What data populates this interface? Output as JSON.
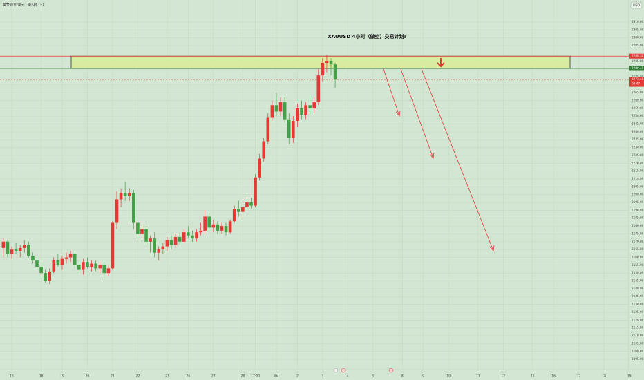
{
  "chart_data": {
    "type": "candlestick",
    "title": "XAUUSD  4小时（做空）交易计划!",
    "symbol_info": "黄金现货/美元 · 4小时 · FX",
    "currency": "USD",
    "up_color": "#e53935",
    "down_color": "#43a047",
    "grid": true,
    "ylim": [
      2088.4,
      2324.1
    ],
    "xlim": [
      -0.8,
      148.9
    ],
    "yticks": [
      {
        "value": 2095,
        "label": "2095.00"
      },
      {
        "value": 2100,
        "label": "2100.00"
      },
      {
        "value": 2105,
        "label": "2105.00"
      },
      {
        "value": 2110,
        "label": "2110.00"
      },
      {
        "value": 2115,
        "label": "2115.00"
      },
      {
        "value": 2120,
        "label": "2120.00"
      },
      {
        "value": 2125,
        "label": "2125.00"
      },
      {
        "value": 2130,
        "label": "2130.00"
      },
      {
        "value": 2135,
        "label": "2135.00"
      },
      {
        "value": 2140,
        "label": "2140.00"
      },
      {
        "value": 2145,
        "label": "2145.00"
      },
      {
        "value": 2150,
        "label": "2150.00"
      },
      {
        "value": 2155,
        "label": "2155.00"
      },
      {
        "value": 2160,
        "label": "2160.00"
      },
      {
        "value": 2165,
        "label": "2165.00"
      },
      {
        "value": 2170,
        "label": "2170.00"
      },
      {
        "value": 2175,
        "label": "2175.00"
      },
      {
        "value": 2180,
        "label": "2180.00"
      },
      {
        "value": 2185,
        "label": "2185.00"
      },
      {
        "value": 2190,
        "label": "2190.00"
      },
      {
        "value": 2195,
        "label": "2195.00"
      },
      {
        "value": 2200,
        "label": "2200.00"
      },
      {
        "value": 2205,
        "label": "2205.00"
      },
      {
        "value": 2210,
        "label": "2210.00"
      },
      {
        "value": 2215,
        "label": "2215.00"
      },
      {
        "value": 2220,
        "label": "2220.00"
      },
      {
        "value": 2225,
        "label": "2225.00"
      },
      {
        "value": 2230,
        "label": "2230.00"
      },
      {
        "value": 2235,
        "label": "2235.00"
      },
      {
        "value": 2240,
        "label": "2240.00"
      },
      {
        "value": 2245,
        "label": "2245.00"
      },
      {
        "value": 2250,
        "label": "2250.00"
      },
      {
        "value": 2255,
        "label": "2255.00"
      },
      {
        "value": 2260,
        "label": "2260.00"
      },
      {
        "value": 2265,
        "label": "2265.00"
      },
      {
        "value": 2270,
        "label": "2270.00"
      },
      {
        "value": 2275,
        "label": "2275.00"
      },
      {
        "value": 2285,
        "label": "2285.00"
      },
      {
        "value": 2295,
        "label": "2295.00"
      },
      {
        "value": 2300,
        "label": "2300.00"
      },
      {
        "value": 2305,
        "label": "2305.00"
      },
      {
        "value": 2310,
        "label": "2310.00"
      }
    ],
    "xticks": [
      {
        "value": 2,
        "label": "15"
      },
      {
        "value": 9,
        "label": "18"
      },
      {
        "value": 14,
        "label": "19"
      },
      {
        "value": 20,
        "label": "20"
      },
      {
        "value": 26,
        "label": "21"
      },
      {
        "value": 32,
        "label": "22"
      },
      {
        "value": 39,
        "label": "23"
      },
      {
        "value": 44,
        "label": "26"
      },
      {
        "value": 50,
        "label": "27"
      },
      {
        "value": 57,
        "label": "28"
      },
      {
        "value": 60,
        "label": "17:00"
      },
      {
        "value": 65,
        "label": "4月"
      },
      {
        "value": 70,
        "label": "2"
      },
      {
        "value": 76,
        "label": "3"
      },
      {
        "value": 82,
        "label": "4"
      },
      {
        "value": 88,
        "label": "5"
      },
      {
        "value": 95,
        "label": "8"
      },
      {
        "value": 100,
        "label": "9"
      },
      {
        "value": 106,
        "label": "10"
      },
      {
        "value": 113,
        "label": "11"
      },
      {
        "value": 119,
        "label": "12"
      },
      {
        "value": 126,
        "label": "15"
      },
      {
        "value": 131,
        "label": "16"
      },
      {
        "value": 137,
        "label": "17"
      },
      {
        "value": 143,
        "label": "18"
      },
      {
        "value": 149,
        "label": "19"
      }
    ],
    "levels": [
      {
        "value": 2288.32,
        "label": "2288.32",
        "color": "#e53935"
      },
      {
        "value": 2280.49,
        "label": "2280.49",
        "color": "#2e7d32"
      },
      {
        "value": 2273.4,
        "label": "2273.40",
        "color": "#e53935",
        "countdown": "00:47"
      }
    ],
    "ohlc": [
      [
        2166,
        2172,
        2160,
        2170
      ],
      [
        2170,
        2171,
        2160,
        2162
      ],
      [
        2162,
        2167,
        2159,
        2165
      ],
      [
        2165,
        2169,
        2162,
        2164
      ],
      [
        2164,
        2168,
        2160,
        2166
      ],
      [
        2166,
        2171,
        2163,
        2168
      ],
      [
        2168,
        2170,
        2160,
        2161
      ],
      [
        2161,
        2163,
        2156,
        2158
      ],
      [
        2158,
        2160,
        2152,
        2154
      ],
      [
        2154,
        2157,
        2146,
        2150
      ],
      [
        2150,
        2152,
        2144,
        2145
      ],
      [
        2145,
        2153,
        2143,
        2151
      ],
      [
        2151,
        2160,
        2150,
        2158
      ],
      [
        2158,
        2162,
        2154,
        2155
      ],
      [
        2155,
        2161,
        2152,
        2159
      ],
      [
        2159,
        2163,
        2156,
        2160
      ],
      [
        2160,
        2164,
        2157,
        2162
      ],
      [
        2162,
        2163,
        2153,
        2155
      ],
      [
        2155,
        2158,
        2150,
        2152
      ],
      [
        2152,
        2159,
        2149,
        2157
      ],
      [
        2157,
        2160,
        2153,
        2154
      ],
      [
        2154,
        2158,
        2151,
        2156
      ],
      [
        2156,
        2158,
        2151,
        2153
      ],
      [
        2153,
        2157,
        2150,
        2155
      ],
      [
        2155,
        2157,
        2147,
        2150
      ],
      [
        2150,
        2155,
        2148,
        2153
      ],
      [
        2153,
        2183,
        2152,
        2182
      ],
      [
        2182,
        2202,
        2178,
        2197
      ],
      [
        2197,
        2204,
        2192,
        2201
      ],
      [
        2201,
        2208,
        2196,
        2199
      ],
      [
        2199,
        2204,
        2196,
        2201
      ],
      [
        2201,
        2203,
        2178,
        2182
      ],
      [
        2182,
        2186,
        2170,
        2175
      ],
      [
        2175,
        2181,
        2172,
        2178
      ],
      [
        2178,
        2180,
        2168,
        2170
      ],
      [
        2170,
        2174,
        2163,
        2172
      ],
      [
        2172,
        2176,
        2160,
        2163
      ],
      [
        2163,
        2167,
        2158,
        2165
      ],
      [
        2165,
        2169,
        2162,
        2167
      ],
      [
        2167,
        2173,
        2164,
        2171
      ],
      [
        2171,
        2174,
        2165,
        2168
      ],
      [
        2168,
        2175,
        2166,
        2173
      ],
      [
        2173,
        2176,
        2168,
        2170
      ],
      [
        2170,
        2178,
        2169,
        2176
      ],
      [
        2176,
        2180,
        2172,
        2174
      ],
      [
        2174,
        2177,
        2170,
        2172
      ],
      [
        2172,
        2178,
        2170,
        2176
      ],
      [
        2176,
        2182,
        2174,
        2177
      ],
      [
        2177,
        2190,
        2175,
        2186
      ],
      [
        2186,
        2188,
        2177,
        2179
      ],
      [
        2179,
        2184,
        2176,
        2181
      ],
      [
        2181,
        2183,
        2175,
        2177
      ],
      [
        2177,
        2182,
        2175,
        2180
      ],
      [
        2180,
        2182,
        2174,
        2176
      ],
      [
        2176,
        2184,
        2175,
        2183
      ],
      [
        2183,
        2193,
        2182,
        2191
      ],
      [
        2191,
        2196,
        2186,
        2189
      ],
      [
        2189,
        2194,
        2185,
        2192
      ],
      [
        2192,
        2198,
        2190,
        2195
      ],
      [
        2195,
        2198,
        2191,
        2193
      ],
      [
        2193,
        2213,
        2192,
        2211
      ],
      [
        2211,
        2226,
        2209,
        2223
      ],
      [
        2223,
        2236,
        2221,
        2234
      ],
      [
        2234,
        2252,
        2232,
        2249
      ],
      [
        2249,
        2260,
        2247,
        2257
      ],
      [
        2257,
        2265,
        2250,
        2253
      ],
      [
        2253,
        2262,
        2250,
        2259
      ],
      [
        2259,
        2262,
        2246,
        2248
      ],
      [
        2248,
        2252,
        2232,
        2236
      ],
      [
        2236,
        2250,
        2233,
        2247
      ],
      [
        2247,
        2258,
        2243,
        2255
      ],
      [
        2255,
        2260,
        2248,
        2251
      ],
      [
        2251,
        2259,
        2248,
        2257
      ],
      [
        2257,
        2263,
        2251,
        2255
      ],
      [
        2255,
        2262,
        2252,
        2259
      ],
      [
        2259,
        2280,
        2257,
        2276
      ],
      [
        2276,
        2287,
        2272,
        2284
      ],
      [
        2284,
        2289,
        2278,
        2285
      ],
      [
        2285,
        2287,
        2276,
        2283
      ],
      [
        2283,
        2284,
        2268,
        2273.4
      ]
    ]
  }
}
